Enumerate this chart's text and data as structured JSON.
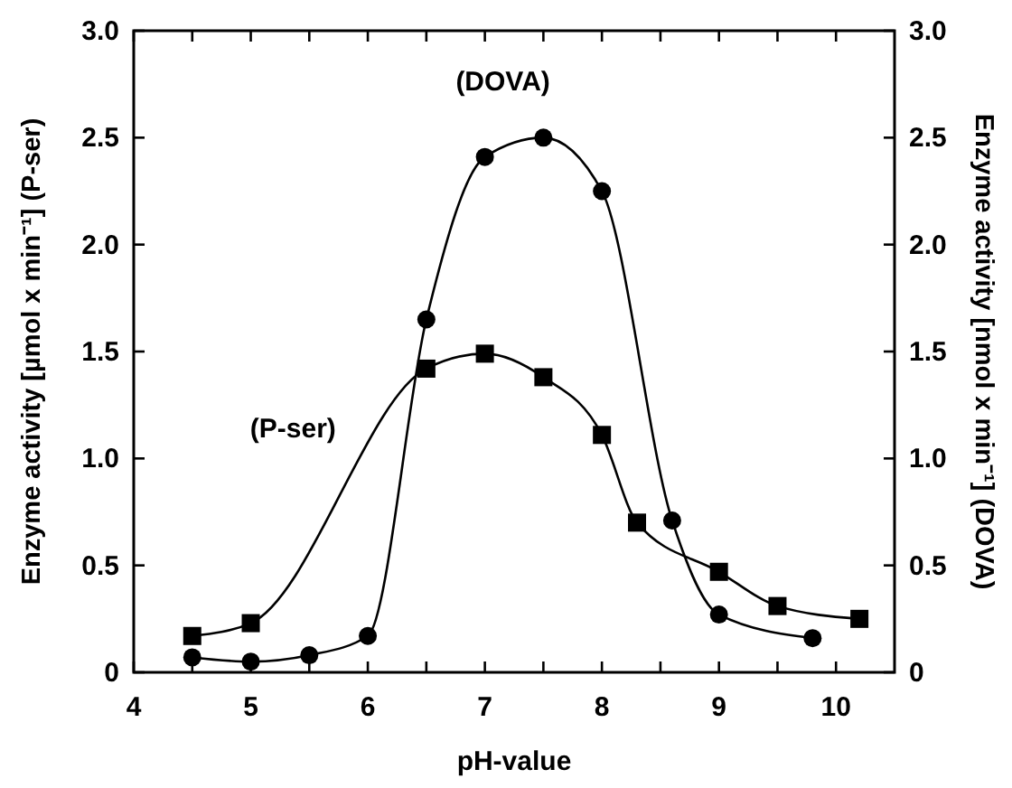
{
  "chart_data": {
    "type": "line",
    "xlabel": "pH-value",
    "ylabel": "Enzyme activity [µmol x min⁻¹] (P-ser)",
    "y2label": "Enzyme activity [nmol x min⁻¹] (DOVA)",
    "xlim": [
      4,
      10.5
    ],
    "xticks": [
      4,
      {
        "value": 4.5,
        "label": null
      },
      5,
      {
        "value": 5.5,
        "label": null
      },
      6,
      {
        "value": 6.5,
        "label": null
      },
      7,
      {
        "value": 7.5,
        "label": null
      },
      8,
      {
        "value": 8.5,
        "label": null
      },
      9,
      {
        "value": 9.5,
        "label": null
      },
      10
    ],
    "ylim": [
      0,
      3
    ],
    "yticks": [
      0,
      0.5,
      {
        "value": 1,
        "label": "1.0"
      },
      1.5,
      {
        "value": 2,
        "label": "2.0"
      },
      2.5,
      {
        "value": 3,
        "label": "3.0"
      }
    ],
    "y2lim": [
      0,
      3
    ],
    "y2ticks": [
      0,
      0.5,
      {
        "value": 1,
        "label": "1.0"
      },
      1.5,
      {
        "value": 2,
        "label": "2.0"
      },
      2.5,
      {
        "value": 3,
        "label": "3.0"
      }
    ],
    "grid": false,
    "series": [
      {
        "name": "(P-ser)",
        "color": "#000000",
        "marker": "square",
        "x": [
          4.5,
          5,
          6.5,
          7,
          7.5,
          8,
          8.3,
          9,
          9.5,
          10.2
        ],
        "values": [
          0.17,
          0.23,
          1.42,
          1.49,
          1.38,
          1.11,
          0.7,
          0.47,
          0.31,
          0.25
        ]
      },
      {
        "name": "(DOVA)",
        "color": "#000000",
        "marker": "circle",
        "axis": "y2",
        "x": [
          4.5,
          5,
          5.5,
          6,
          6.5,
          7,
          7.5,
          8,
          8.6,
          9,
          9.8
        ],
        "values": [
          0.07,
          0.05,
          0.08,
          0.17,
          1.65,
          2.41,
          2.5,
          2.25,
          0.71,
          0.27,
          0.16
        ]
      }
    ]
  }
}
